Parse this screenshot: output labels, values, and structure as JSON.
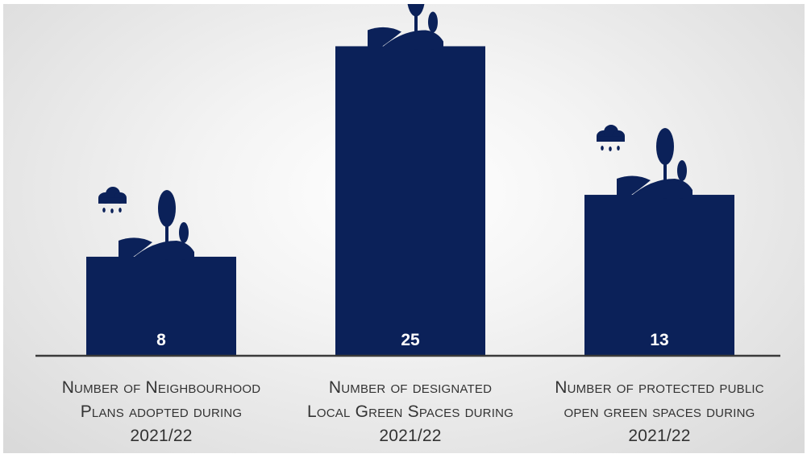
{
  "chart_data": {
    "type": "bar",
    "categories": [
      "Number of Neighbourhood Plans adopted during 2021/22",
      "Number of designated Local Green Spaces during 2021/22",
      "Number of protected public open green spaces during 2021/22"
    ],
    "values": [
      8,
      25,
      13
    ],
    "value_labels": [
      "8",
      "25",
      "13"
    ],
    "ylim": [
      0,
      27.5
    ],
    "grid": false,
    "bar_color": "#0b2159",
    "axis_color": "#3a3a3a",
    "label_color": "#333333",
    "decoration_icon": "landscape-rain-tree-icon"
  }
}
